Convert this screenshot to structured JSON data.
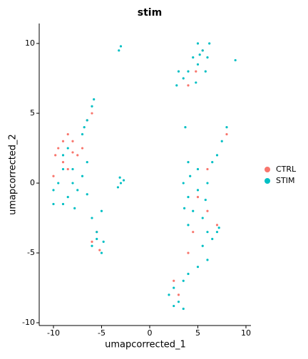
{
  "chart_data": {
    "type": "scatter",
    "title": "stim",
    "x_label": "umapcorrected_1",
    "y_label": "umapcorrected_2",
    "xlim": [
      -11.48,
      10.52
    ],
    "ylim": [
      -10.2,
      11.43
    ],
    "xticks": [
      -10,
      -5,
      0,
      5,
      10
    ],
    "yticks": [
      -10,
      -5,
      0,
      5,
      10
    ],
    "grid": false,
    "legend": "right",
    "series": [
      {
        "name": "CTRL",
        "color": "#F8766D",
        "x": [
          -9,
          -8.5,
          -8,
          -9.5,
          -7.5,
          -9,
          -10,
          -8.5,
          -7,
          -9.8,
          -8,
          -6.5,
          -6,
          -5.5,
          -6,
          -5.2,
          5.5,
          4.8,
          4,
          5,
          4.5,
          6,
          7,
          3,
          2.5,
          8,
          6,
          4
        ],
        "values": [
          3,
          3.5,
          3,
          2.5,
          2,
          1.5,
          0.5,
          1,
          2.5,
          2,
          2.2,
          4.5,
          5,
          -3.5,
          -4.2,
          -4.8,
          9.5,
          8,
          7,
          -1,
          -3.5,
          -2,
          -3,
          -8,
          -7,
          3.5,
          1,
          -5
        ]
      },
      {
        "name": "STIM",
        "color": "#00BFC4",
        "x": [
          5,
          5.5,
          6,
          4.5,
          5,
          5.8,
          3.5,
          3,
          2.8,
          4,
          5.2,
          6.2,
          4.8,
          8.9,
          -3.2,
          -3,
          -6,
          -6.5,
          -5.8,
          -7,
          -6.8,
          -9,
          -8,
          -9.5,
          -10,
          -8.5,
          -7.5,
          -9,
          -8,
          -7,
          -10,
          -9,
          -6.5,
          -8.5,
          -7.8,
          -6.5,
          -3,
          -3.3,
          -2.7,
          -3.1,
          -5.5,
          -6,
          -5,
          -5.5,
          -4.8,
          -6,
          -5,
          8,
          7.5,
          7,
          6.5,
          5,
          4,
          3.5,
          4,
          5,
          6,
          4.5,
          5.5,
          4,
          6,
          7,
          5.5,
          6,
          5,
          4,
          3.5,
          2.5,
          2,
          3,
          3.5,
          2.5,
          6.5,
          7.2,
          3.6,
          4.2,
          5.8,
          3.7
        ],
        "values": [
          10,
          9.5,
          9,
          9,
          8.5,
          8,
          7.5,
          8,
          7,
          8,
          9.2,
          10,
          7.2,
          8.8,
          9.5,
          9.8,
          5.5,
          4.5,
          6,
          3.5,
          4,
          2,
          1,
          0,
          -0.5,
          -1,
          -0.5,
          1,
          0,
          0.5,
          -1.5,
          -1.5,
          -0.8,
          2.5,
          -1.8,
          1.5,
          0,
          -0.3,
          0.2,
          0.4,
          -4,
          -4.5,
          -5,
          -3.5,
          -4.2,
          -2.5,
          -2,
          4,
          3,
          2,
          1.5,
          1,
          1.5,
          0,
          -1,
          -0.5,
          0,
          -2,
          -2.5,
          -3,
          -3.5,
          -3.5,
          -4.5,
          -5.5,
          -6,
          -6.5,
          -7,
          -7.5,
          -8,
          -8.5,
          -9,
          -8.8,
          -4,
          -3.2,
          -1.8,
          0.5,
          -1.2,
          4
        ]
      }
    ]
  }
}
